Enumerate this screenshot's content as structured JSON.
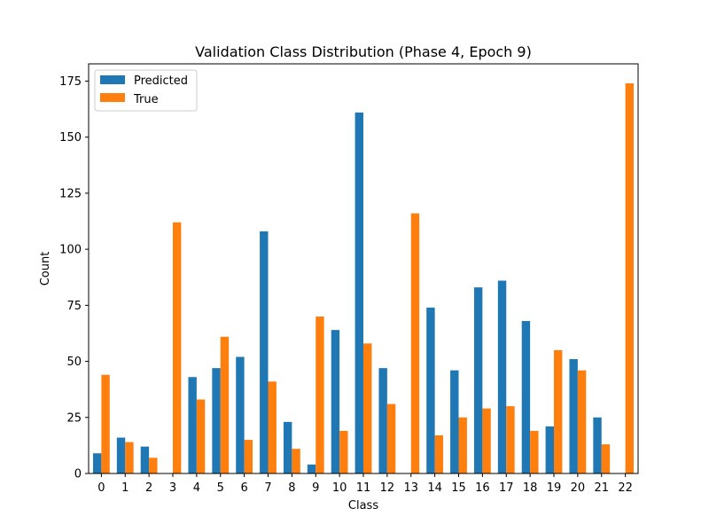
{
  "colors": {
    "predicted": "#1f77b4",
    "true": "#ff7f0e"
  },
  "chart_data": {
    "type": "bar",
    "title": "Validation Class Distribution (Phase 4, Epoch 9)",
    "xlabel": "Class",
    "ylabel": "Count",
    "categories": [
      "0",
      "1",
      "2",
      "3",
      "4",
      "5",
      "6",
      "7",
      "8",
      "9",
      "10",
      "11",
      "12",
      "13",
      "14",
      "15",
      "16",
      "17",
      "18",
      "19",
      "20",
      "21",
      "22"
    ],
    "series": [
      {
        "name": "Predicted",
        "values": [
          9,
          16,
          12,
          0,
          43,
          47,
          52,
          108,
          23,
          4,
          64,
          161,
          47,
          0,
          74,
          46,
          83,
          86,
          68,
          21,
          51,
          25,
          0
        ]
      },
      {
        "name": "True",
        "values": [
          44,
          14,
          7,
          112,
          33,
          61,
          15,
          41,
          11,
          70,
          19,
          58,
          31,
          116,
          17,
          25,
          29,
          30,
          19,
          55,
          46,
          13,
          174
        ]
      }
    ],
    "ylim": [
      0,
      182.7
    ],
    "yticks": [
      0,
      25,
      50,
      75,
      100,
      125,
      150,
      175
    ],
    "legend": "top-left",
    "grid": false
  }
}
